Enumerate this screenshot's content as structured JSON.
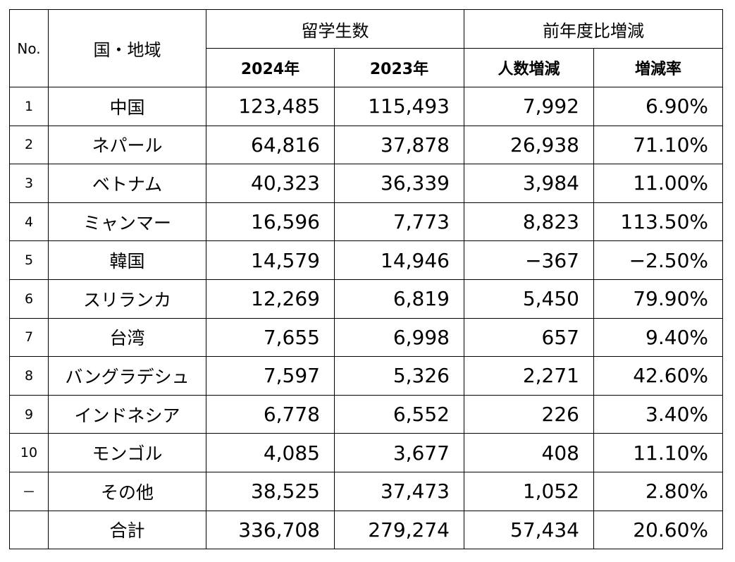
{
  "header": {
    "no": "No.",
    "region": "国・地域",
    "students": "留学生数",
    "y2024": "2024年",
    "y2023": "2023年",
    "yoy": "前年度比増減",
    "diff": "人数増減",
    "rate": "増減率"
  },
  "rows": [
    {
      "no": "1",
      "name": "中国",
      "y2024": "123,485",
      "y2023": "115,493",
      "diff": "7,992",
      "rate": "6.90%"
    },
    {
      "no": "2",
      "name": "ネパール",
      "y2024": "64,816",
      "y2023": "37,878",
      "diff": "26,938",
      "rate": "71.10%"
    },
    {
      "no": "3",
      "name": "ベトナム",
      "y2024": "40,323",
      "y2023": "36,339",
      "diff": "3,984",
      "rate": "11.00%"
    },
    {
      "no": "4",
      "name": "ミャンマー",
      "y2024": "16,596",
      "y2023": "7,773",
      "diff": "8,823",
      "rate": "113.50%"
    },
    {
      "no": "5",
      "name": "韓国",
      "y2024": "14,579",
      "y2023": "14,946",
      "diff": "−367",
      "rate": "−2.50%"
    },
    {
      "no": "6",
      "name": "スリランカ",
      "y2024": "12,269",
      "y2023": "6,819",
      "diff": "5,450",
      "rate": "79.90%"
    },
    {
      "no": "7",
      "name": "台湾",
      "y2024": "7,655",
      "y2023": "6,998",
      "diff": "657",
      "rate": "9.40%"
    },
    {
      "no": "8",
      "name": "バングラデシュ",
      "y2024": "7,597",
      "y2023": "5,326",
      "diff": "2,271",
      "rate": "42.60%"
    },
    {
      "no": "9",
      "name": "インドネシア",
      "y2024": "6,778",
      "y2023": "6,552",
      "diff": "226",
      "rate": "3.40%"
    },
    {
      "no": "10",
      "name": "モンゴル",
      "y2024": "4,085",
      "y2023": "3,677",
      "diff": "408",
      "rate": "11.10%"
    },
    {
      "no": "－",
      "name": "その他",
      "y2024": "38,525",
      "y2023": "37,473",
      "diff": "1,052",
      "rate": "2.80%"
    },
    {
      "name": "合計",
      "y2024": "336,708",
      "y2023": "279,274",
      "diff": "57,434",
      "rate": "20.60%"
    }
  ]
}
